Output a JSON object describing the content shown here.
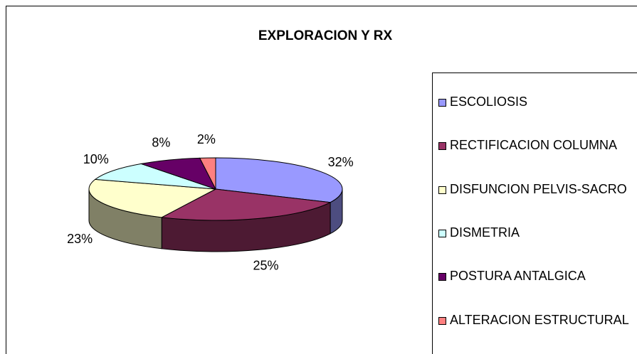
{
  "chart_data": {
    "type": "pie3d",
    "title": "EXPLORACION Y RX",
    "categories": [
      "ESCOLIOSIS",
      "RECTIFICACION COLUMNA",
      "DISFUNCION PELVIS-SACRO",
      "DISMETRIA",
      "POSTURA ANTALGICA",
      "ALTERACION ESTRUCTURAL"
    ],
    "values": [
      32,
      25,
      23,
      10,
      8,
      2
    ],
    "value_labels": [
      "32%",
      "25%",
      "23%",
      "10%",
      "8%",
      "2%"
    ],
    "colors": [
      "#9999ff",
      "#993366",
      "#ffffcc",
      "#ccffff",
      "#660066",
      "#ff8080"
    ],
    "legend": "right"
  }
}
